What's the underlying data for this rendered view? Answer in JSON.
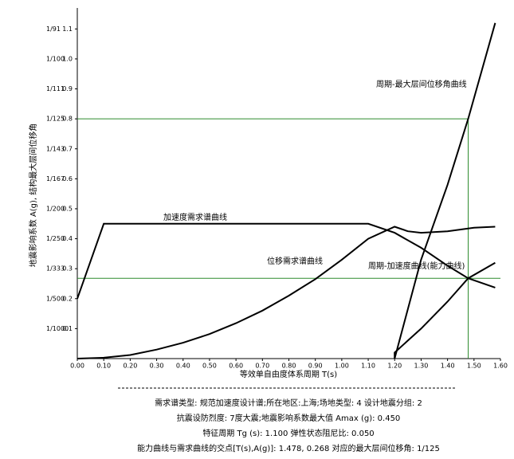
{
  "chart_data": {
    "type": "line",
    "xlabel": "等效单自由度体系周期 T(s)",
    "ylabel": "地震影响系数 A(g), 结构最大层间位移角",
    "xlim": [
      0,
      1.6
    ],
    "ylim": [
      0,
      1.17
    ],
    "xticks": [
      {
        "value": 0,
        "label": "0.00"
      },
      {
        "value": 0.1,
        "label": "0.10"
      },
      {
        "value": 0.2,
        "label": "0.20"
      },
      {
        "value": 0.3,
        "label": "0.30"
      },
      {
        "value": 0.4,
        "label": "0.40"
      },
      {
        "value": 0.5,
        "label": "0.50"
      },
      {
        "value": 0.6,
        "label": "0.60"
      },
      {
        "value": 0.7,
        "label": "0.70"
      },
      {
        "value": 0.8,
        "label": "0.80"
      },
      {
        "value": 0.9,
        "label": "0.90"
      },
      {
        "value": 1.0,
        "label": "1.00"
      },
      {
        "value": 1.1,
        "label": "1.10"
      },
      {
        "value": 1.2,
        "label": "1.20"
      },
      {
        "value": 1.3,
        "label": "1.30"
      },
      {
        "value": 1.4,
        "label": "1.40"
      },
      {
        "value": 1.5,
        "label": "1.50"
      },
      {
        "value": 1.6,
        "label": "1.60"
      }
    ],
    "yticks": [
      0.1,
      0.2,
      0.3,
      0.4,
      0.5,
      0.6,
      0.7,
      0.8,
      0.9,
      {
        "value": 1.0,
        "label": "1.0"
      },
      1.1
    ],
    "ytick_drift_labels": [
      "1/1000",
      "1/500",
      "1/333",
      "1/250",
      "1/200",
      "1/167",
      "1/143",
      "1/125",
      "1/111",
      "1/100",
      "1/91"
    ],
    "series": [
      {
        "name": "加速度需求谱曲线",
        "color": "#000000",
        "x": [
          0,
          0.1,
          1.1,
          1.2,
          1.3,
          1.4,
          1.478,
          1.58
        ],
        "values": [
          0.2,
          0.45,
          0.45,
          0.42,
          0.37,
          0.31,
          0.268,
          0.237
        ]
      },
      {
        "name": "位移需求谱曲线",
        "color": "#000000",
        "x": [
          0,
          0.1,
          0.2,
          0.3,
          0.4,
          0.5,
          0.6,
          0.7,
          0.8,
          0.9,
          1.0,
          1.1,
          1.2,
          1.25,
          1.3,
          1.4,
          1.5,
          1.58
        ],
        "values": [
          0,
          0.003,
          0.012,
          0.03,
          0.053,
          0.082,
          0.118,
          0.16,
          0.21,
          0.265,
          0.33,
          0.4,
          0.44,
          0.425,
          0.42,
          0.425,
          0.437,
          0.44
        ]
      },
      {
        "name": "周期-最大层间位移角曲线",
        "color": "#000000",
        "x": [
          1.2,
          1.3,
          1.4,
          1.478,
          1.58
        ],
        "values": [
          0,
          0.33,
          0.58,
          0.8,
          1.12
        ]
      },
      {
        "name": "周期-加速度曲线(能力曲线)",
        "color": "#000000",
        "x": [
          1.2,
          1.2,
          1.25,
          1.3,
          1.4,
          1.478,
          1.58
        ],
        "values": [
          0,
          0.02,
          0.06,
          0.1,
          0.19,
          0.268,
          0.32
        ]
      }
    ],
    "reference_color": "#2e8b2e",
    "reference_lines": [
      {
        "axis": "y",
        "value": 0.8
      },
      {
        "axis": "y",
        "value": 0.268
      },
      {
        "axis": "x",
        "value": 1.478
      }
    ],
    "footer_lines": [
      "需求谱类型: 规范加速度设计谱;所在地区:上海;场地类型: 4 设计地震分组: 2",
      "抗震设防烈度: 7度大震;地震影响系数最大值 Amax (g): 0.450",
      "特征周期 Tg (s): 1.100 弹性状态阻尼比: 0.050",
      "能力曲线与需求曲线的交点[T(s),A(g)]: 1.478, 0.268 对应的最大层间位移角: 1/125"
    ]
  }
}
